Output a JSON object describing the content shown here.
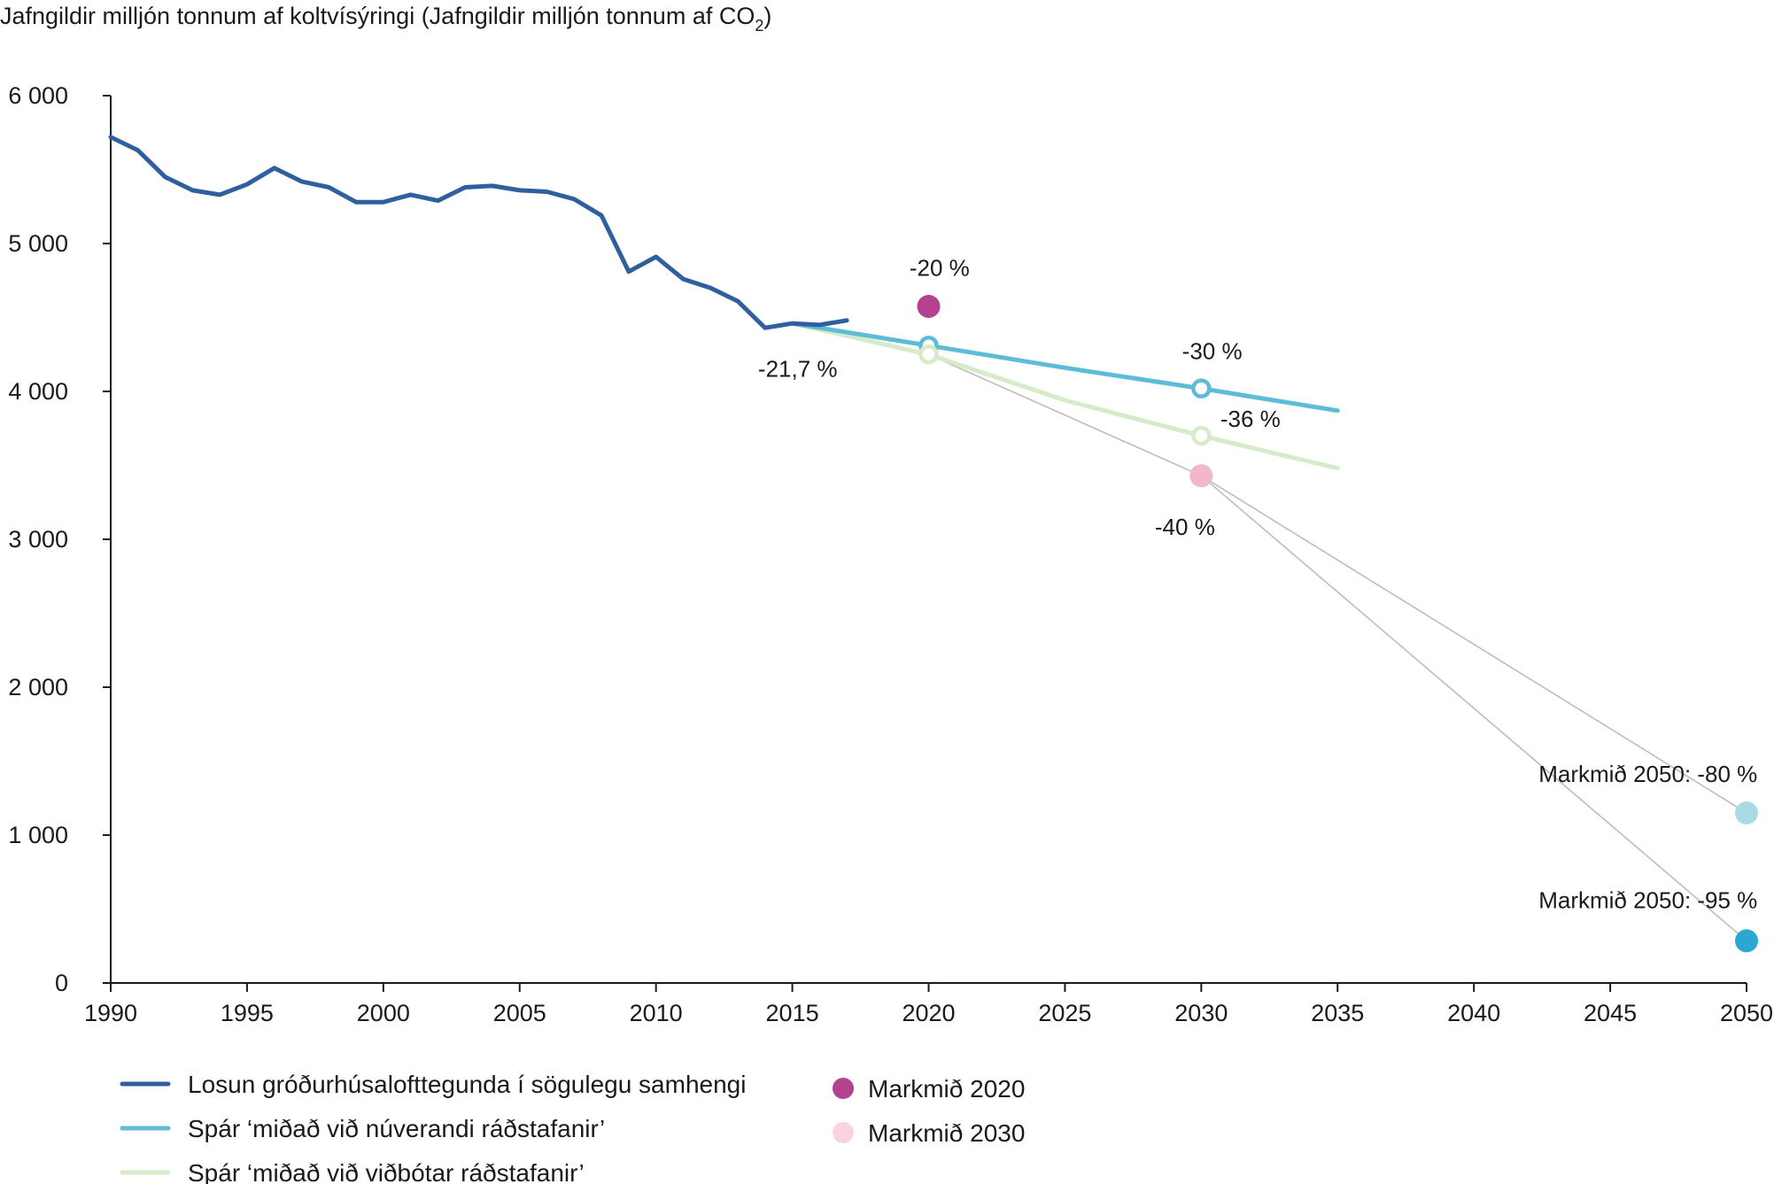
{
  "chart_data": {
    "type": "line",
    "title": "Jafngildir milljón tonnum af koltvísýringi (Jafngildir milljón tonnum af CO",
    "title_sub": "2",
    "title_end": ")",
    "xlim": [
      1990,
      2050
    ],
    "ylim": [
      0,
      6000
    ],
    "x_ticks": [
      "1990",
      "1995",
      "2000",
      "2005",
      "2010",
      "2015",
      "2020",
      "2025",
      "2030",
      "2035",
      "2040",
      "2045",
      "2050"
    ],
    "y_ticks": [
      "0",
      "1 000",
      "2 000",
      "3 000",
      "4 000",
      "5 000",
      "6 000"
    ],
    "series": [
      {
        "name": "Losun gróðurhúsalofttegunda í sögulegu samhengi",
        "color": "#2f5f9e",
        "x": [
          1990,
          1991,
          1992,
          1993,
          1994,
          1995,
          1996,
          1997,
          1998,
          1999,
          2000,
          2001,
          2002,
          2003,
          2004,
          2005,
          2006,
          2007,
          2008,
          2009,
          2010,
          2011,
          2012,
          2013,
          2014,
          2015,
          2016,
          2017
        ],
        "y": [
          5720,
          5630,
          5450,
          5360,
          5330,
          5400,
          5510,
          5420,
          5380,
          5280,
          5280,
          5330,
          5290,
          5380,
          5390,
          5360,
          5350,
          5300,
          5190,
          4810,
          4910,
          4760,
          4700,
          4610,
          4430,
          4460,
          4450,
          4480
        ]
      },
      {
        "name": "Spár ‘miðað við núverandi ráðstafanir’",
        "color": "#5dbcd6",
        "x": [
          2015,
          2020,
          2025,
          2030,
          2035
        ],
        "y": [
          4460,
          4310,
          4160,
          4020,
          3870
        ]
      },
      {
        "name": "Spár ‘miðað við viðbótar ráðstafanir’",
        "color": "#d5ebc9",
        "x": [
          2015,
          2020,
          2025,
          2030,
          2035
        ],
        "y": [
          4460,
          4250,
          3940,
          3700,
          3480
        ]
      }
    ],
    "targets": [
      {
        "name": "Markmið 2020",
        "x": 2020,
        "y": 4575,
        "color": "#b5428e"
      },
      {
        "name": "Markmið 2030",
        "x": 2030,
        "y": 3430,
        "color": "#f3b8c8"
      },
      {
        "name": "Markmið 2050: -80 %",
        "x": 2050,
        "y": 1150,
        "color": "#a9dbe6"
      },
      {
        "name": "Markmið 2050: -95 %",
        "x": 2050,
        "y": 285,
        "color": "#2aa7d3"
      }
    ],
    "open_markers": [
      {
        "x": 2020,
        "y": 4310,
        "color": "#5dbcd6"
      },
      {
        "x": 2030,
        "y": 4020,
        "color": "#5dbcd6"
      },
      {
        "x": 2020,
        "y": 4250,
        "color": "#d5ebc9"
      },
      {
        "x": 2030,
        "y": 3700,
        "color": "#d5ebc9"
      }
    ],
    "guide_lines": [
      {
        "x1": 2020,
        "y1": 4250,
        "x2": 2030,
        "y2": 3430
      },
      {
        "x1": 2030,
        "y1": 3430,
        "x2": 2050,
        "y2": 1150
      },
      {
        "x1": 2030,
        "y1": 3430,
        "x2": 2050,
        "y2": 285
      }
    ],
    "annotations": [
      {
        "text": "-20 %",
        "x": 2020.4,
        "y": 4780,
        "anchor": "middle"
      },
      {
        "text": "-21,7 %",
        "x": 2015.2,
        "y": 4100,
        "anchor": "middle"
      },
      {
        "text": "-30 %",
        "x": 2030.4,
        "y": 4220,
        "anchor": "middle"
      },
      {
        "text": "-36 %",
        "x": 2030.7,
        "y": 3760,
        "anchor": "start"
      },
      {
        "text": "-40 %",
        "x": 2029.4,
        "y": 3030,
        "anchor": "middle"
      },
      {
        "text": "Markmið 2050: -80 %",
        "x": 2050.4,
        "y": 1360,
        "anchor": "end"
      },
      {
        "text": "Markmið 2050: -95 %",
        "x": 2050.4,
        "y": 505,
        "anchor": "end"
      }
    ],
    "legend": {
      "lines": [
        {
          "label": "Losun gróðurhúsalofttegunda í sögulegu samhengi",
          "color": "#2f5f9e"
        },
        {
          "label": "Spár ‘miðað við núverandi ráðstafanir’",
          "color": "#5dbcd6"
        },
        {
          "label": "Spár ‘miðað við viðbótar ráðstafanir’",
          "color": "#d5ebc9"
        }
      ],
      "dots": [
        {
          "label": "Markmið 2020",
          "color": "#b5428e"
        },
        {
          "label": "Markmið 2030",
          "color": "#f9d3de"
        }
      ]
    }
  }
}
